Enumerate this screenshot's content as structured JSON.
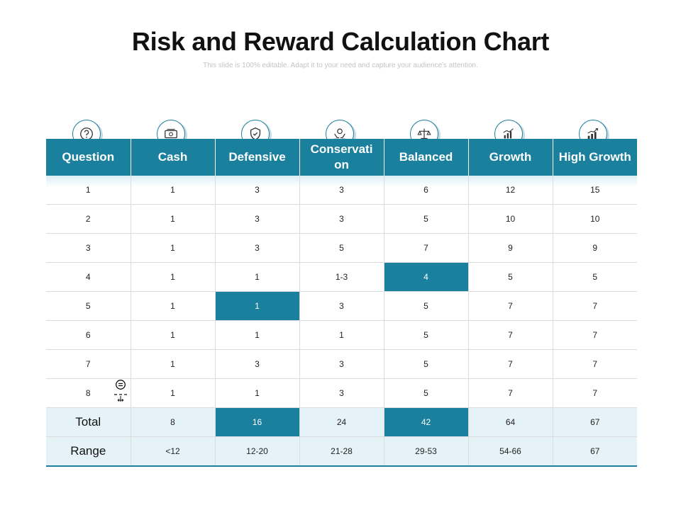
{
  "title": "Risk and Reward Calculation Chart",
  "subtitle": "This slide is 100% editable. Adapt it to your need and capture your audience's attention.",
  "icons": [
    "question-icon",
    "cash-icon",
    "shield-icon",
    "hands-coin-icon",
    "balance-icon",
    "growth-chart-icon",
    "high-growth-icon"
  ],
  "colors": {
    "accent": "#1b7f9e",
    "summary_bg": "#e5f3f9",
    "grid": "#dcdcdc"
  },
  "table": {
    "headers": [
      "Question",
      "Cash",
      "Defensive",
      "Conservati on",
      "Balanced",
      "Growth",
      "High Growth"
    ],
    "rows": [
      [
        "1",
        "1",
        "3",
        "3",
        "6",
        "12",
        "15"
      ],
      [
        "2",
        "1",
        "3",
        "3",
        "5",
        "10",
        "10"
      ],
      [
        "3",
        "1",
        "3",
        "5",
        "7",
        "9",
        "9"
      ],
      [
        "4",
        "1",
        "1",
        "1-3",
        "4",
        "5",
        "5"
      ],
      [
        "5",
        "1",
        "1",
        "3",
        "5",
        "7",
        "7"
      ],
      [
        "6",
        "1",
        "1",
        "1",
        "5",
        "7",
        "7"
      ],
      [
        "7",
        "1",
        "3",
        "3",
        "5",
        "7",
        "7"
      ],
      [
        "8",
        "1",
        "1",
        "3",
        "5",
        "7",
        "7"
      ]
    ],
    "total": {
      "label": "Total",
      "values": [
        "8",
        "16",
        "24",
        "42",
        "64",
        "67"
      ]
    },
    "range": {
      "label": "Range",
      "values": [
        "<12",
        "12-20",
        "21-28",
        "29-53",
        "54-66",
        "67"
      ]
    }
  }
}
